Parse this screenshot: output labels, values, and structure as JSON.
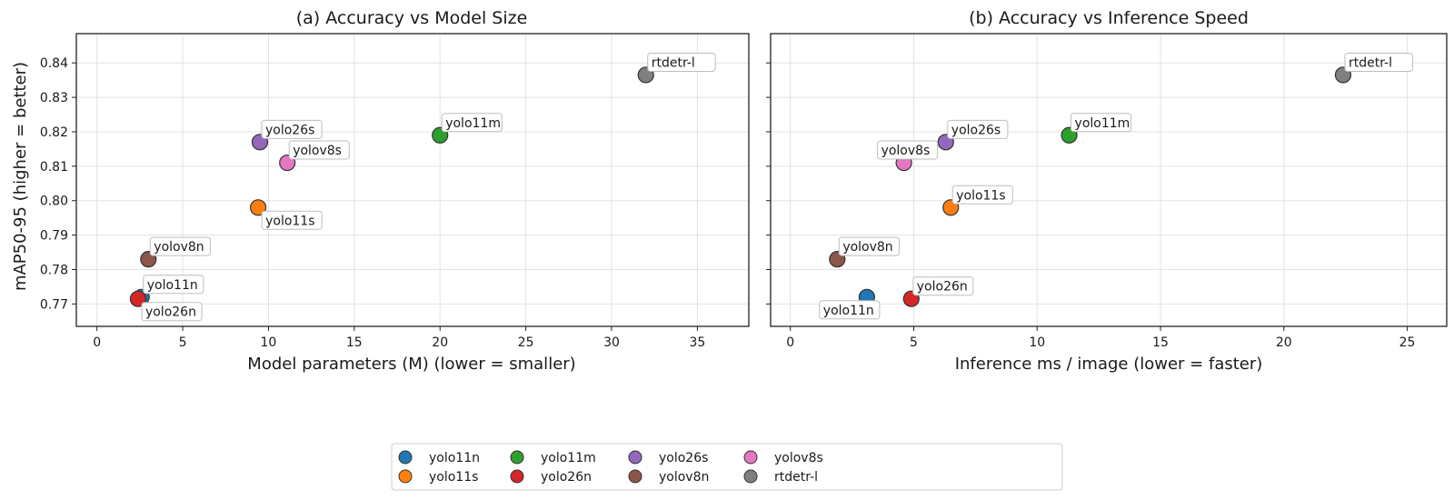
{
  "legend": {
    "placement": "bottom-center",
    "entries": [
      "yolo11n",
      "yolo11s",
      "yolo11m",
      "yolo26n",
      "yolo26s",
      "yolov8n",
      "yolov8s",
      "rtdetr-l"
    ]
  },
  "colors": {
    "yolo11n": "#1f77b4",
    "yolo11s": "#ff7f0e",
    "yolo11m": "#2ca02c",
    "yolo26n": "#d62728",
    "yolo26s": "#9467bd",
    "yolov8n": "#8c564b",
    "yolov8s": "#e377c2",
    "rtdetr-l": "#7f7f7f"
  },
  "chart_data": [
    {
      "type": "scatter",
      "title": "(a) Accuracy vs Model Size",
      "xlabel": "Model parameters (M)  (lower = smaller)",
      "ylabel": "mAP50-95  (higher = better)",
      "xlim": [
        -1.2,
        38
      ],
      "ylim": [
        0.7635,
        0.8485
      ],
      "xticks": [
        0,
        5,
        10,
        15,
        20,
        25,
        30,
        35
      ],
      "yticks": [
        0.77,
        0.78,
        0.79,
        0.8,
        0.81,
        0.82,
        0.83,
        0.84
      ],
      "ytick_labels": [
        "0.77",
        "0.78",
        "0.79",
        "0.80",
        "0.81",
        "0.82",
        "0.83",
        "0.84"
      ],
      "grid": true,
      "points": [
        {
          "name": "yolo11n",
          "x": 2.6,
          "y": 0.772,
          "label_pos": "above-right"
        },
        {
          "name": "yolo11s",
          "x": 9.4,
          "y": 0.798,
          "label_pos": "below-right"
        },
        {
          "name": "yolo11m",
          "x": 20.0,
          "y": 0.819,
          "label_pos": "above-right"
        },
        {
          "name": "yolo26n",
          "x": 2.4,
          "y": 0.7715,
          "label_pos": "below-right"
        },
        {
          "name": "yolo26s",
          "x": 9.5,
          "y": 0.817,
          "label_pos": "above-right"
        },
        {
          "name": "yolov8n",
          "x": 3.0,
          "y": 0.783,
          "label_pos": "above-right"
        },
        {
          "name": "yolov8s",
          "x": 11.1,
          "y": 0.811,
          "label_pos": "above-right"
        },
        {
          "name": "rtdetr-l",
          "x": 32.0,
          "y": 0.8365,
          "label_pos": "above-right"
        }
      ]
    },
    {
      "type": "scatter",
      "title": "(b) Accuracy vs Inference Speed",
      "xlabel": "Inference ms / image  (lower = faster)",
      "ylabel": "",
      "xlim": [
        -0.8,
        26.6
      ],
      "ylim": [
        0.7635,
        0.8485
      ],
      "xticks": [
        0,
        5,
        10,
        15,
        20,
        25
      ],
      "yticks": [
        0.77,
        0.78,
        0.79,
        0.8,
        0.81,
        0.82,
        0.83,
        0.84
      ],
      "ytick_labels": [],
      "grid": true,
      "points": [
        {
          "name": "yolo11n",
          "x": 3.1,
          "y": 0.772,
          "label_pos": "below-left"
        },
        {
          "name": "yolo11s",
          "x": 6.5,
          "y": 0.798,
          "label_pos": "above-right"
        },
        {
          "name": "yolo11m",
          "x": 11.3,
          "y": 0.819,
          "label_pos": "above-right"
        },
        {
          "name": "yolo26n",
          "x": 4.9,
          "y": 0.7715,
          "label_pos": "above-right"
        },
        {
          "name": "yolo26s",
          "x": 6.3,
          "y": 0.817,
          "label_pos": "above-right"
        },
        {
          "name": "yolov8n",
          "x": 1.9,
          "y": 0.783,
          "label_pos": "above-right"
        },
        {
          "name": "yolov8s",
          "x": 4.6,
          "y": 0.811,
          "label_pos": "above-center"
        },
        {
          "name": "rtdetr-l",
          "x": 22.4,
          "y": 0.8365,
          "label_pos": "above-right"
        }
      ]
    }
  ]
}
